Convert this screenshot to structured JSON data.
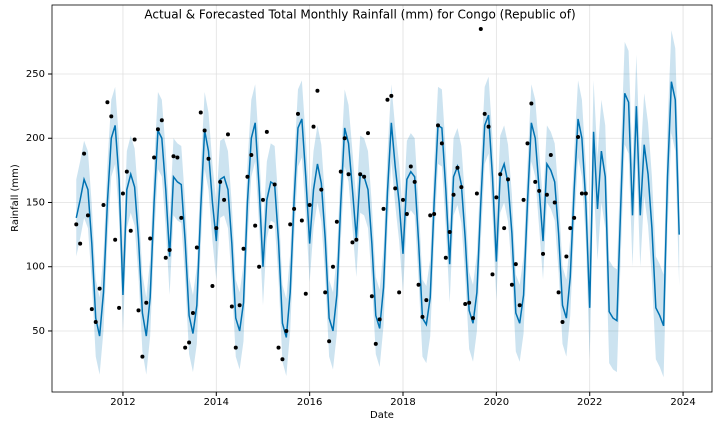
{
  "chart_data": {
    "type": "line",
    "title": "Actual & Forecasted Total Monthly Rainfall (mm) for Congo (Republic of)",
    "xlabel": "Date",
    "ylabel": "Rainfall (mm)",
    "xlim": [
      2010.48,
      2024.62
    ],
    "ylim": [
      2.5,
      303.7
    ],
    "xticks": [
      2012,
      2014,
      2016,
      2018,
      2020,
      2022,
      2024
    ],
    "yticks": [
      50,
      100,
      150,
      200,
      250
    ],
    "grid": true,
    "x": [
      2011,
      2011.083,
      2011.167,
      2011.25,
      2011.333,
      2011.417,
      2011.5,
      2011.583,
      2011.667,
      2011.75,
      2011.833,
      2011.917,
      2012,
      2012.083,
      2012.167,
      2012.25,
      2012.333,
      2012.417,
      2012.5,
      2012.583,
      2012.667,
      2012.75,
      2012.833,
      2012.917,
      2013,
      2013.083,
      2013.167,
      2013.25,
      2013.333,
      2013.417,
      2013.5,
      2013.583,
      2013.667,
      2013.75,
      2013.833,
      2013.917,
      2014,
      2014.083,
      2014.167,
      2014.25,
      2014.333,
      2014.417,
      2014.5,
      2014.583,
      2014.667,
      2014.75,
      2014.833,
      2014.917,
      2015,
      2015.083,
      2015.167,
      2015.25,
      2015.333,
      2015.417,
      2015.5,
      2015.583,
      2015.667,
      2015.75,
      2015.833,
      2015.917,
      2016,
      2016.083,
      2016.167,
      2016.25,
      2016.333,
      2016.417,
      2016.5,
      2016.583,
      2016.667,
      2016.75,
      2016.833,
      2016.917,
      2017,
      2017.083,
      2017.167,
      2017.25,
      2017.333,
      2017.417,
      2017.5,
      2017.583,
      2017.667,
      2017.75,
      2017.833,
      2017.917,
      2018,
      2018.083,
      2018.167,
      2018.25,
      2018.333,
      2018.417,
      2018.5,
      2018.583,
      2018.667,
      2018.75,
      2018.833,
      2018.917,
      2019,
      2019.083,
      2019.167,
      2019.25,
      2019.333,
      2019.417,
      2019.5,
      2019.583,
      2019.667,
      2019.75,
      2019.833,
      2019.917,
      2020,
      2020.083,
      2020.167,
      2020.25,
      2020.333,
      2020.417,
      2020.5,
      2020.583,
      2020.667,
      2020.75,
      2020.833,
      2020.917,
      2021,
      2021.083,
      2021.167,
      2021.25,
      2021.333,
      2021.417,
      2021.5,
      2021.583,
      2021.667,
      2021.75,
      2021.833,
      2021.917,
      2022,
      2022.083,
      2022.167,
      2022.25,
      2022.333,
      2022.417,
      2022.5,
      2022.583,
      2022.667,
      2022.75,
      2022.833,
      2022.917,
      2023,
      2023.083,
      2023.167,
      2023.25,
      2023.333,
      2023.417,
      2023.5,
      2023.583,
      2023.667,
      2023.75,
      2023.833,
      2023.917
    ],
    "interval": {
      "color": "#0072b2",
      "lower": [
        108,
        122,
        138,
        130,
        88,
        30,
        16,
        50,
        120,
        170,
        180,
        138,
        48,
        130,
        142,
        132,
        92,
        34,
        16,
        46,
        120,
        176,
        170,
        130,
        78,
        140,
        136,
        134,
        90,
        32,
        18,
        40,
        116,
        176,
        160,
        120,
        90,
        138,
        140,
        130,
        88,
        30,
        20,
        42,
        120,
        170,
        182,
        132,
        70,
        122,
        136,
        134,
        90,
        26,
        15,
        50,
        122,
        178,
        185,
        140,
        88,
        130,
        150,
        135,
        92,
        30,
        20,
        48,
        120,
        178,
        166,
        130,
        92,
        142,
        140,
        130,
        88,
        32,
        22,
        54,
        128,
        182,
        148,
        120,
        80,
        138,
        144,
        140,
        90,
        30,
        25,
        46,
        120,
        180,
        178,
        130,
        72,
        140,
        148,
        134,
        92,
        36,
        26,
        50,
        120,
        180,
        188,
        140,
        74,
        142,
        150,
        135,
        96,
        34,
        26,
        48,
        120,
        182,
        170,
        130,
        90,
        150,
        145,
        136,
        96,
        40,
        30,
        62,
        130,
        185,
        170,
        120,
        28,
        165,
        105,
        150,
        130,
        25,
        20,
        18,
        110,
        195,
        188,
        100,
        185,
        100,
        155,
        132,
        90,
        28,
        22,
        14,
        130,
        204,
        190,
        85
      ],
      "upper": [
        168,
        182,
        198,
        190,
        148,
        90,
        76,
        110,
        180,
        230,
        240,
        198,
        108,
        190,
        202,
        192,
        152,
        94,
        76,
        106,
        180,
        236,
        230,
        190,
        138,
        200,
        196,
        194,
        150,
        92,
        78,
        100,
        176,
        236,
        220,
        180,
        150,
        198,
        200,
        190,
        148,
        90,
        80,
        102,
        180,
        230,
        242,
        192,
        130,
        182,
        196,
        194,
        150,
        86,
        75,
        110,
        182,
        238,
        245,
        200,
        148,
        190,
        210,
        195,
        152,
        90,
        80,
        108,
        180,
        238,
        226,
        190,
        152,
        202,
        200,
        190,
        148,
        92,
        82,
        114,
        188,
        242,
        208,
        180,
        140,
        198,
        204,
        200,
        150,
        90,
        85,
        106,
        180,
        240,
        238,
        190,
        132,
        200,
        208,
        194,
        152,
        96,
        86,
        110,
        180,
        240,
        248,
        200,
        134,
        202,
        210,
        195,
        156,
        94,
        86,
        108,
        180,
        242,
        230,
        190,
        150,
        210,
        205,
        196,
        156,
        100,
        90,
        122,
        190,
        245,
        230,
        180,
        108,
        245,
        185,
        230,
        210,
        105,
        100,
        98,
        190,
        275,
        268,
        180,
        265,
        180,
        235,
        212,
        170,
        108,
        102,
        94,
        210,
        284,
        270,
        165
      ]
    },
    "forecast": {
      "color": "#0072b2",
      "values": [
        138,
        152,
        168,
        160,
        118,
        60,
        46,
        80,
        150,
        200,
        210,
        168,
        78,
        160,
        172,
        162,
        122,
        64,
        46,
        76,
        150,
        206,
        200,
        160,
        108,
        170,
        166,
        164,
        120,
        62,
        48,
        70,
        146,
        206,
        190,
        150,
        120,
        168,
        170,
        160,
        118,
        60,
        50,
        72,
        150,
        200,
        212,
        162,
        100,
        152,
        166,
        164,
        120,
        56,
        45,
        80,
        152,
        208,
        215,
        170,
        118,
        160,
        180,
        165,
        122,
        60,
        50,
        78,
        150,
        208,
        196,
        160,
        122,
        172,
        170,
        160,
        118,
        62,
        52,
        84,
        158,
        212,
        178,
        150,
        110,
        168,
        174,
        170,
        120,
        60,
        55,
        76,
        150,
        210,
        208,
        160,
        102,
        170,
        178,
        164,
        122,
        66,
        56,
        80,
        150,
        210,
        218,
        170,
        104,
        172,
        180,
        165,
        126,
        64,
        56,
        78,
        150,
        212,
        200,
        160,
        120,
        180,
        175,
        166,
        126,
        70,
        60,
        92,
        160,
        215,
        200,
        150,
        68,
        205,
        145,
        190,
        170,
        65,
        60,
        58,
        150,
        235,
        228,
        140,
        225,
        140,
        195,
        172,
        130,
        68,
        62,
        54,
        170,
        244,
        230,
        125
      ]
    },
    "actual": {
      "color": "#000000",
      "values": [
        133,
        118,
        188,
        140,
        67,
        57,
        83,
        148,
        228,
        217,
        121,
        68,
        157,
        174,
        128,
        199,
        66,
        30,
        72,
        122,
        185,
        207,
        214,
        107,
        113,
        186,
        185,
        138,
        37,
        41,
        64,
        115,
        220,
        206,
        184,
        85,
        130,
        166,
        152,
        203,
        69,
        37,
        70,
        114,
        170,
        187,
        132,
        100,
        152,
        205,
        131,
        164,
        37,
        28,
        50,
        133,
        145,
        219,
        136,
        79,
        148,
        209,
        237,
        160,
        80,
        42,
        100,
        135,
        174,
        200,
        172,
        119,
        121,
        172,
        170,
        204,
        77,
        40,
        59,
        145,
        230,
        233,
        161,
        80,
        152,
        141,
        178,
        166,
        86,
        61,
        74,
        140,
        141,
        210,
        196,
        107,
        127,
        156,
        177,
        162,
        71,
        72,
        60,
        157,
        285,
        219,
        209,
        94,
        154,
        172,
        130,
        168,
        86,
        102,
        70,
        152,
        196,
        227,
        166,
        159,
        110,
        156,
        187,
        150,
        80,
        57,
        108,
        130,
        138,
        201,
        157,
        157,
        null,
        null,
        null,
        null,
        null,
        null,
        null,
        null,
        null,
        null,
        null,
        null,
        null,
        null,
        null,
        null,
        null,
        null,
        null,
        null,
        null,
        null,
        null,
        null
      ]
    }
  }
}
